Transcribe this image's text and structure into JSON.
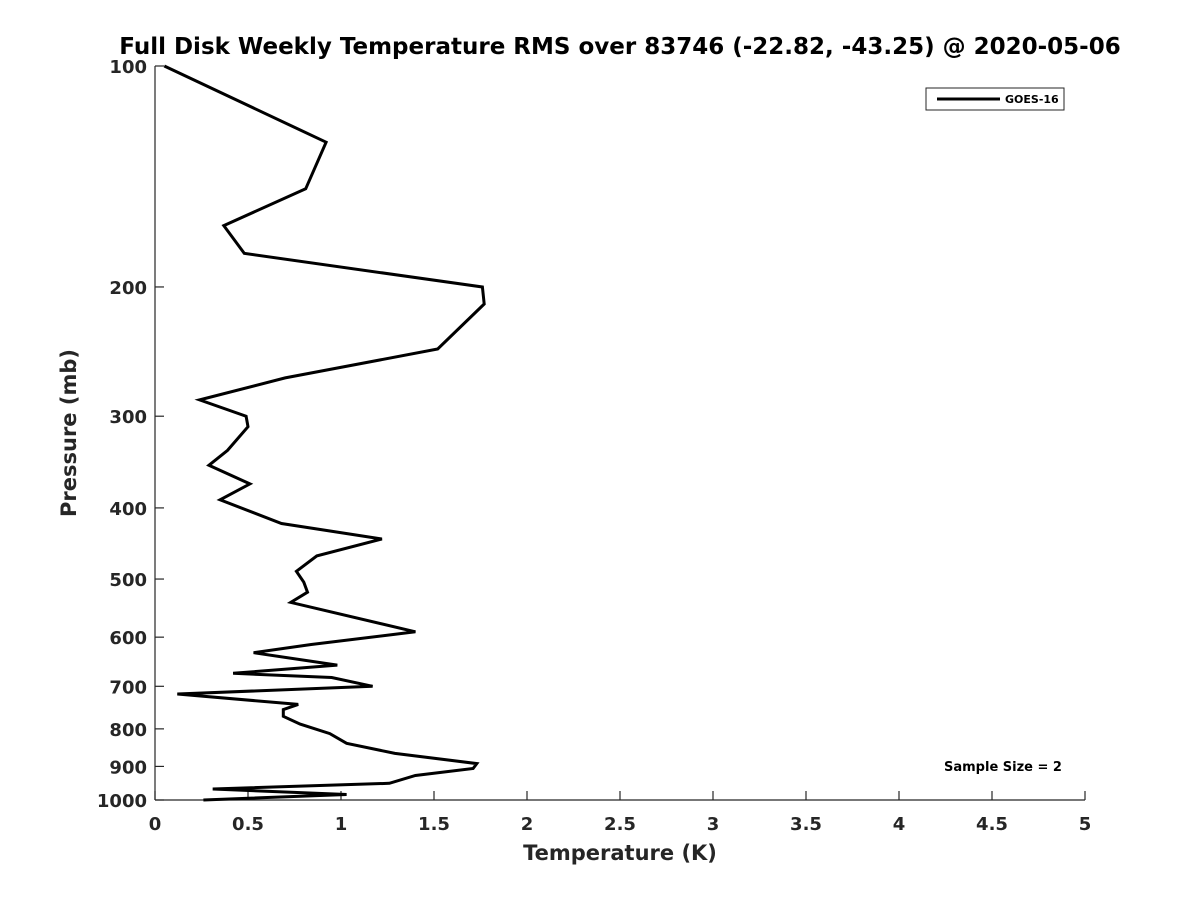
{
  "chart_data": {
    "type": "line",
    "title": "Full Disk Weekly Temperature RMS over 83746 (-22.82, -43.25) @ 2020-05-06",
    "xlabel": "Temperature (K)",
    "ylabel": "Pressure (mb)",
    "xlim": [
      0,
      5
    ],
    "ylim": [
      100,
      1000
    ],
    "y_scale": "log",
    "y_reversed": true,
    "grid": false,
    "legend_position": "top-right",
    "x_ticks": [
      "0",
      "0.5",
      "1",
      "1.5",
      "2",
      "2.5",
      "3",
      "3.5",
      "4",
      "4.5",
      "5"
    ],
    "y_ticks": [
      "100",
      "200",
      "300",
      "400",
      "500",
      "600",
      "700",
      "800",
      "900",
      "1000"
    ],
    "annotation": "Sample Size = 2",
    "series_color": "#000000",
    "series": [
      {
        "name": "GOES-16",
        "x": [
          0.05,
          0.92,
          0.81,
          0.37,
          0.48,
          1.76,
          1.77,
          1.52,
          0.7,
          0.24,
          0.49,
          0.5,
          0.39,
          0.29,
          0.51,
          0.35,
          0.68,
          1.22,
          0.87,
          0.76,
          0.8,
          0.82,
          0.73,
          1.4,
          0.84,
          0.53,
          0.98,
          0.42,
          0.95,
          1.17,
          0.12,
          0.77,
          0.69,
          0.69,
          0.78,
          0.94,
          1.03,
          1.29,
          1.73,
          1.71,
          1.4,
          1.26,
          0.31,
          1.03,
          0.26
        ],
        "y": [
          100,
          127,
          147,
          165,
          180,
          200,
          211,
          243,
          266,
          285,
          300,
          310,
          334,
          350,
          371,
          390,
          420,
          441,
          465,
          488,
          505,
          521,
          538,
          590,
          614,
          630,
          655,
          672,
          681,
          700,
          717,
          741,
          753,
          769,
          788,
          812,
          837,
          864,
          892,
          906,
          926,
          949,
          966,
          983,
          1000
        ]
      }
    ]
  }
}
